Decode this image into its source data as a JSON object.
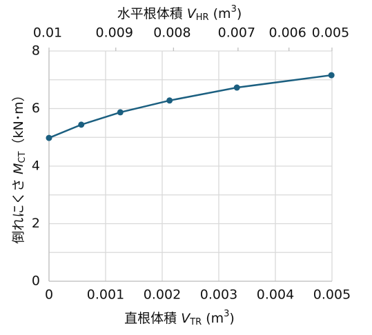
{
  "chart_data": {
    "type": "line",
    "x_title": {
      "text": "直根体積 ",
      "var": "V",
      "sub": "TR",
      "open": " (m",
      "sup": "3",
      "close": ")"
    },
    "x2_title": {
      "text": "水平根体積 ",
      "var": "V",
      "sub": "HR",
      "open": " (m",
      "sup": "3",
      "close": ")"
    },
    "y_title": {
      "text": "倒れにくさ ",
      "var": "M",
      "sub": "CT",
      "close": "（kN･m）"
    },
    "x": [
      0,
      0.00057,
      0.00126,
      0.00213,
      0.00332,
      0.00499
    ],
    "series": [
      {
        "name": "倒れにくさ",
        "color": "#1b5f80",
        "values": [
          4.98,
          5.44,
          5.87,
          6.28,
          6.73,
          7.16
        ]
      }
    ],
    "xlim": [
      0,
      0.005
    ],
    "xticks": [
      0,
      0.001,
      0.002,
      0.003,
      0.004,
      0.005
    ],
    "ylim": [
      0,
      8
    ],
    "yticks": [
      0,
      2,
      4,
      6,
      8
    ],
    "yminor": [
      1,
      3,
      5,
      7
    ],
    "x2ticks": [
      {
        "value": 0.01,
        "x": 0
      },
      {
        "value": 0.009,
        "x": 0.00118
      },
      {
        "value": 0.008,
        "x": 0.0022
      },
      {
        "value": 0.007,
        "x": 0.00334
      },
      {
        "value": 0.006,
        "x": 0.00424
      },
      {
        "value": 0.005,
        "x": 0.005
      }
    ],
    "grid": true
  }
}
